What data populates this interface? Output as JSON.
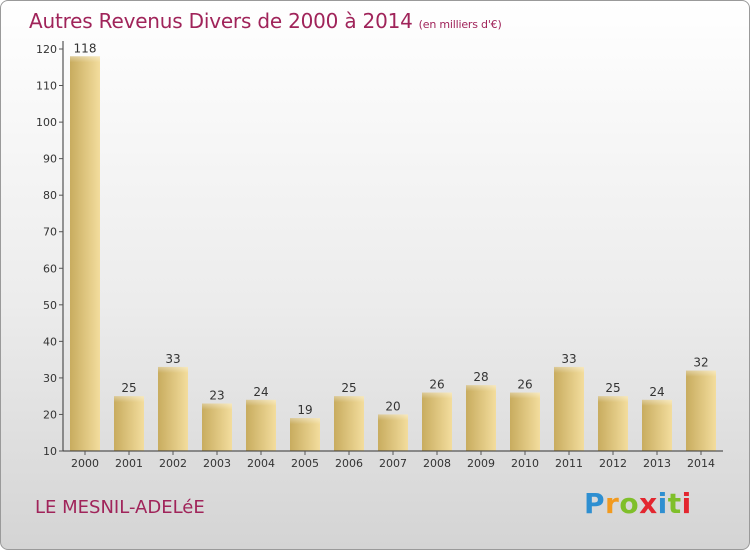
{
  "header": {
    "title": "Autres Revenus Divers de 2000 à 2014",
    "unit": "(en milliers d'€)"
  },
  "footer": {
    "commune": "LE MESNIL-ADELéE",
    "logo_letters": [
      "P",
      "r",
      "o",
      "x",
      "i",
      "t",
      "i"
    ],
    "logo_colors": [
      "#2e8fd1",
      "#f29a1e",
      "#7fbf2a",
      "#e3262f",
      "#2e8fd1",
      "#7fbf2a",
      "#e3262f"
    ]
  },
  "colors": {
    "bar_light": "#f3dd9d",
    "bar_dark": "#c8ac5f",
    "text_accent": "#a0245a",
    "axis": "#333333",
    "grid_tick": "#555555"
  },
  "chart_data": {
    "type": "bar",
    "title": "Autres Revenus Divers de 2000 à 2014",
    "subtitle": "(en milliers d'€)",
    "categories": [
      "2000",
      "2001",
      "2002",
      "2003",
      "2004",
      "2005",
      "2006",
      "2007",
      "2008",
      "2009",
      "2010",
      "2011",
      "2012",
      "2013",
      "2014"
    ],
    "values": [
      118,
      25,
      33,
      23,
      24,
      19,
      25,
      20,
      26,
      28,
      26,
      33,
      25,
      24,
      32
    ],
    "ylim": [
      10,
      120
    ],
    "yticks": [
      10,
      20,
      30,
      40,
      50,
      60,
      70,
      80,
      90,
      100,
      110,
      120
    ],
    "data_labels": true,
    "grid": false,
    "legend": "none"
  }
}
